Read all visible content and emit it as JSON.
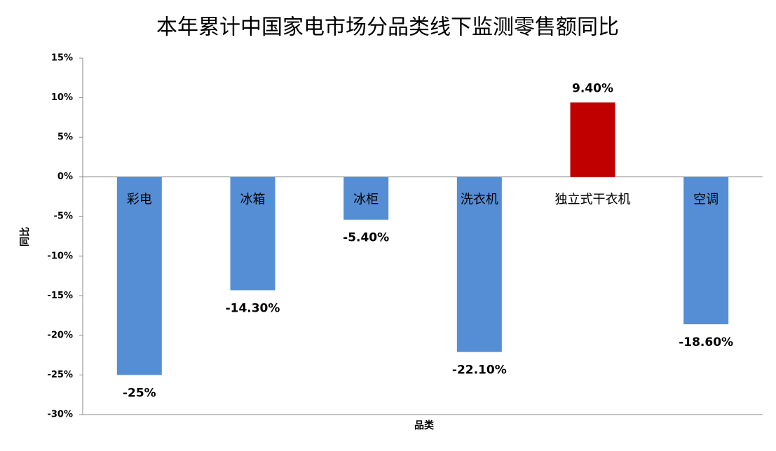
{
  "chart_data": {
    "type": "bar",
    "title": "本年累计中国家电市场分品类线下监测零售额同比",
    "x_label": "品类",
    "y_label": "同比",
    "categories": [
      "彩电",
      "冰箱",
      "冰柜",
      "洗衣机",
      "独立式干衣机",
      "空调"
    ],
    "values": [
      -25,
      -14.3,
      -5.4,
      -22.1,
      9.4,
      -18.6
    ],
    "value_labels": [
      "-25%",
      "-14.30%",
      "-5.40%",
      "-22.10%",
      "9.40%",
      "-18.60%"
    ],
    "colors": [
      "#558ed5",
      "#558ed5",
      "#558ed5",
      "#558ed5",
      "#c00000",
      "#558ed5"
    ],
    "ylim": [
      -30,
      15
    ],
    "yticks": [
      {
        "value": -30,
        "label": "-30%"
      },
      {
        "value": -25,
        "label": "-25%"
      },
      {
        "value": -20,
        "label": "-20%"
      },
      {
        "value": -15,
        "label": "-15%"
      },
      {
        "value": -10,
        "label": "-10%"
      },
      {
        "value": -5,
        "label": "-5%"
      },
      {
        "value": 0,
        "label": "0%"
      },
      {
        "value": 5,
        "label": "5%"
      },
      {
        "value": 10,
        "label": "10%"
      },
      {
        "value": 15,
        "label": "15%"
      }
    ],
    "grid": false
  }
}
